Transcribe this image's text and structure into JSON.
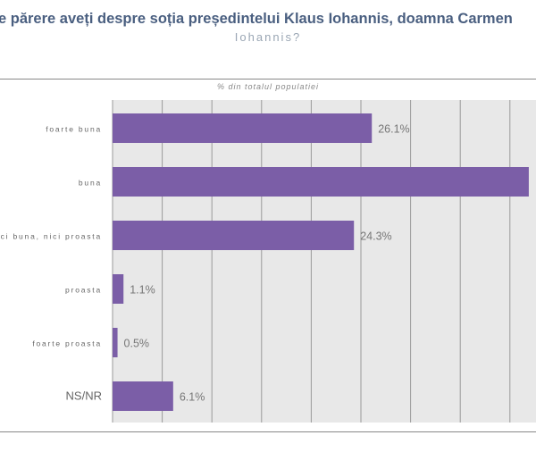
{
  "chart_data": {
    "type": "bar",
    "orientation": "horizontal",
    "title": "e părere aveți despre soția președintelui Klaus Iohannis, doamna Carmen",
    "subtitle": "Iohannis?",
    "unit_label": "% din totalul populatiei",
    "categories": [
      "foarte buna",
      "buna",
      "nici buna, nici proasta",
      "proasta",
      "foarte proasta",
      "NS/NR"
    ],
    "category_labels_visible": [
      "foarte buna",
      "buna",
      "ci buna, nici proasta",
      "proasta",
      "foarte proasta",
      "NS/NR"
    ],
    "values": [
      26.1,
      41.9,
      24.3,
      1.1,
      0.5,
      6.1
    ],
    "data_labels": [
      "26.1%",
      "",
      "24.3%",
      "1.1%",
      "0.5%",
      "6.1%"
    ],
    "xlim": [
      0,
      42.5
    ],
    "grid_step": 5,
    "grid": true,
    "bar_color": "#7b5ea7",
    "plot_background": "#e8e8e8"
  }
}
